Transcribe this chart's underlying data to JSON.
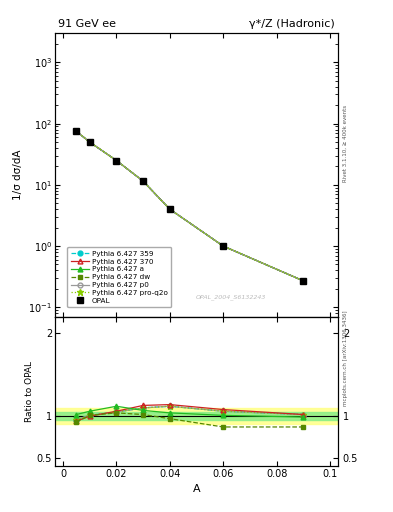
{
  "title_left": "91 GeV ee",
  "title_right": "γ*/Z (Hadronic)",
  "xlabel": "A",
  "ylabel_top": "1/σ dσ/dA",
  "ylabel_bottom": "Ratio to OPAL",
  "right_label_top": "Rivet 3.1.10, ≥ 400k events",
  "right_label_bottom": "mcplots.cern.ch [arXiv:1306.3436]",
  "watermark": "OPAL_2004_S6132243",
  "x": [
    0.005,
    0.01,
    0.02,
    0.03,
    0.04,
    0.06,
    0.09
  ],
  "opal": [
    75.0,
    50.0,
    25.0,
    11.5,
    4.0,
    1.0,
    0.27
  ],
  "py359": [
    75.0,
    50.0,
    25.0,
    11.5,
    4.0,
    1.0,
    0.27
  ],
  "py370": [
    75.0,
    50.0,
    25.0,
    11.5,
    4.0,
    1.0,
    0.27
  ],
  "pya": [
    75.0,
    50.0,
    25.0,
    11.5,
    4.0,
    1.0,
    0.27
  ],
  "pydw": [
    75.0,
    50.0,
    25.0,
    11.5,
    4.0,
    1.0,
    0.27
  ],
  "pyp0": [
    75.0,
    50.0,
    25.0,
    11.5,
    4.0,
    1.0,
    0.27
  ],
  "pyproq2o": [
    75.0,
    50.0,
    25.0,
    11.5,
    4.0,
    1.0,
    0.27
  ],
  "ratio_py359": [
    0.96,
    1.01,
    1.05,
    1.1,
    1.12,
    1.06,
    1.02
  ],
  "ratio_py370": [
    0.94,
    1.0,
    1.06,
    1.13,
    1.14,
    1.08,
    1.02
  ],
  "ratio_pya": [
    1.02,
    1.06,
    1.12,
    1.07,
    1.04,
    1.01,
    0.99
  ],
  "ratio_pydw": [
    0.93,
    1.01,
    1.04,
    1.02,
    0.97,
    0.87,
    0.87
  ],
  "ratio_pyp0": [
    0.96,
    1.01,
    1.05,
    1.1,
    1.12,
    1.06,
    1.02
  ],
  "ratio_pyproq2o": [
    0.96,
    1.01,
    1.05,
    1.1,
    1.12,
    1.06,
    1.02
  ],
  "band_yellow": 0.1,
  "band_green": 0.05,
  "c_359": "#00cccc",
  "c_370": "#cc2222",
  "c_a": "#22bb22",
  "c_dw": "#558800",
  "c_p0": "#999999",
  "c_proq2o": "#88cc00"
}
